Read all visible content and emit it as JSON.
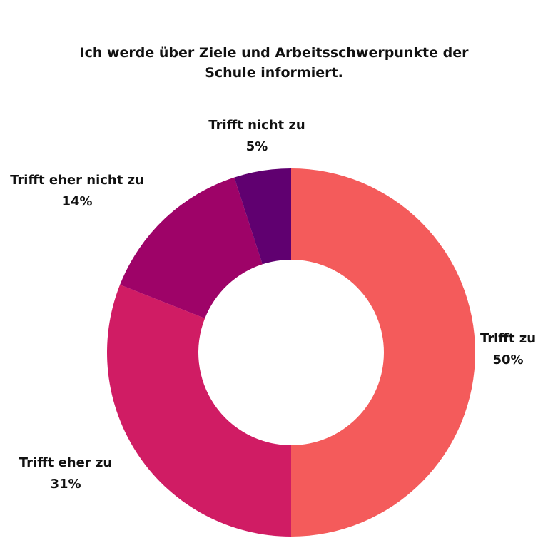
{
  "chart_data": {
    "type": "pie",
    "title": "Ich werde über Ziele und Arbeitsschwerpunkte der Schule informiert.",
    "donut": true,
    "start_angle_deg": 0,
    "direction": "clockwise",
    "slices": [
      {
        "label": "Trifft zu",
        "value": 50,
        "value_label": "50%",
        "color": "#F45B5B"
      },
      {
        "label": "Trifft eher zu",
        "value": 31,
        "value_label": "31%",
        "color": "#D01C64"
      },
      {
        "label": "Trifft eher nicht zu",
        "value": 14,
        "value_label": "14%",
        "color": "#9E0368"
      },
      {
        "label": "Trifft nicht zu",
        "value": 5,
        "value_label": "5%",
        "color": "#600070"
      }
    ]
  }
}
